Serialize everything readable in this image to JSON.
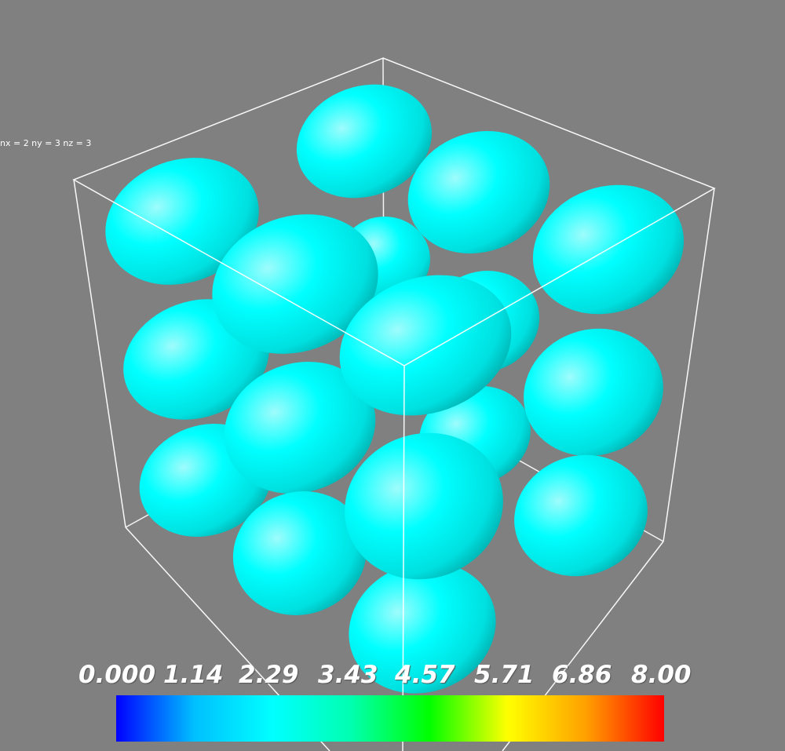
{
  "caption": "nx = 2 ny = 3 nz = 3",
  "colormap": {
    "ticks": [
      "0.000",
      "1.14",
      "2.29",
      "3.43",
      "4.57",
      "5.71",
      "6.86",
      "8.00"
    ],
    "colors": [
      "#0000ff",
      "#00c0ff",
      "#00ffff",
      "#00ffb0",
      "#00ff00",
      "#ffff00",
      "#ffa000",
      "#ff0000"
    ]
  },
  "colors": {
    "background": "#808080",
    "ellipsoid": "#00ffff",
    "box": "#ffffff"
  }
}
